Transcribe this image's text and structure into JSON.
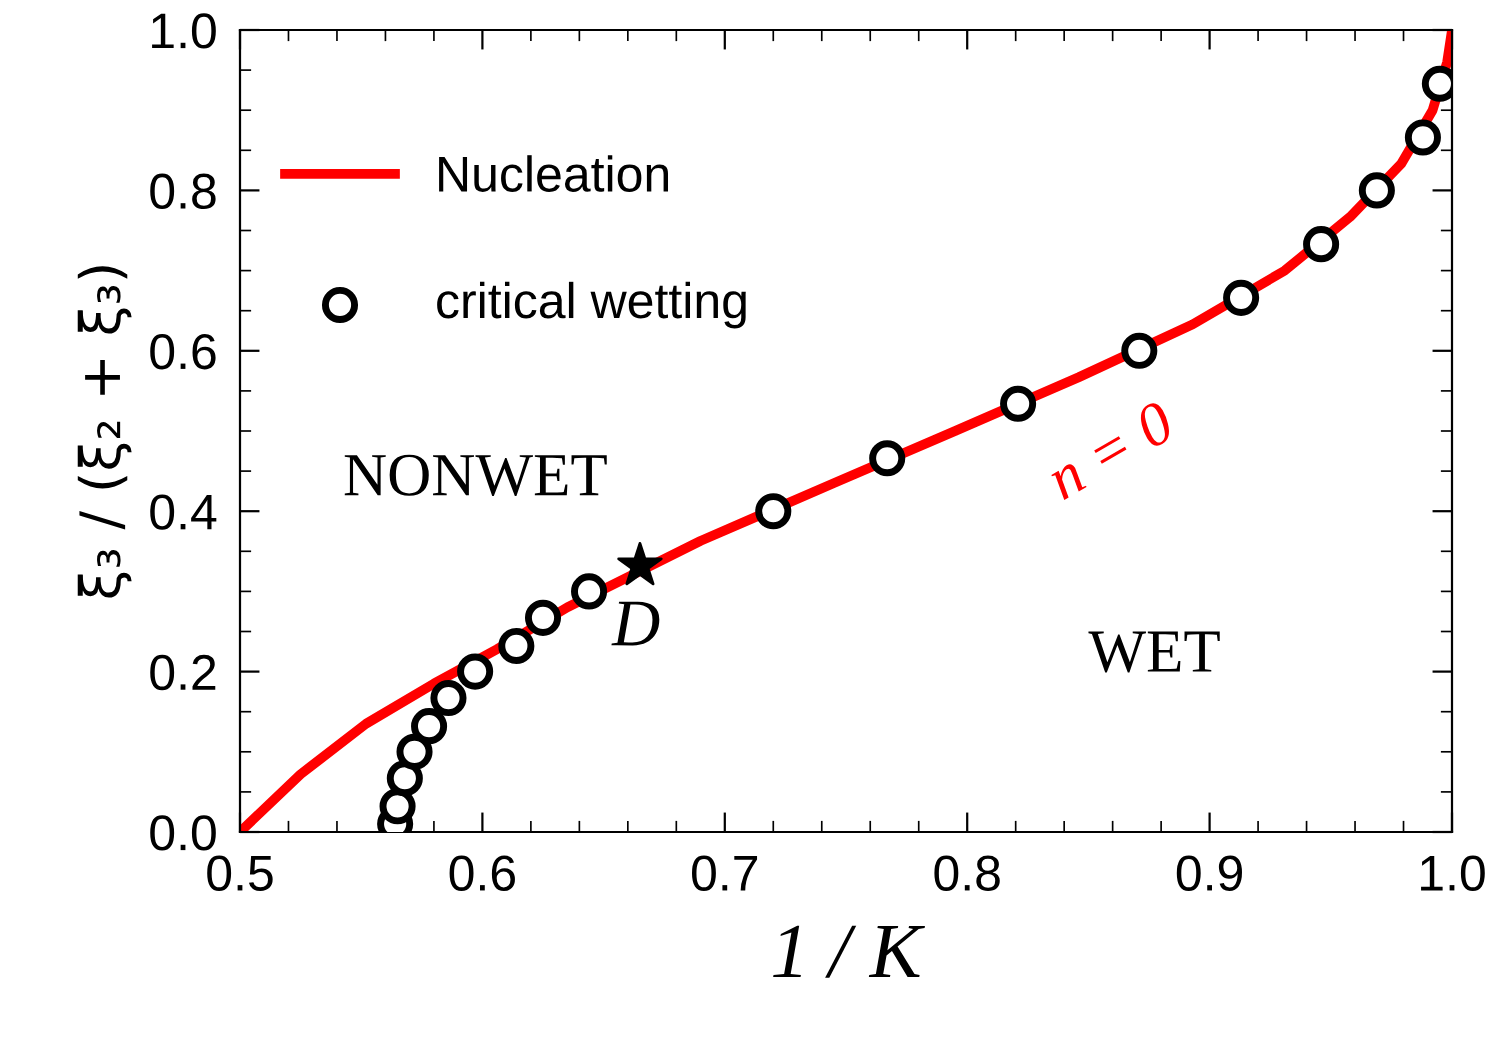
{
  "chart_data": {
    "type": "line",
    "xlabel": "1 / K",
    "ylabel": "ξ̄₃ / (ξ₂ + ξ̄₃)",
    "xlim": [
      0.5,
      1.0
    ],
    "ylim": [
      0.0,
      1.0
    ],
    "xticks": [
      {
        "value": 0.5,
        "label": "0.5"
      },
      {
        "value": 0.6,
        "label": "0.6"
      },
      {
        "value": 0.7,
        "label": "0.7"
      },
      {
        "value": 0.8,
        "label": "0.8"
      },
      {
        "value": 0.9,
        "label": "0.9"
      },
      {
        "value": 1.0,
        "label": "1.0"
      }
    ],
    "yticks": [
      {
        "value": 0.0,
        "label": "0.0"
      },
      {
        "value": 0.2,
        "label": "0.2"
      },
      {
        "value": 0.4,
        "label": "0.4"
      },
      {
        "value": 0.6,
        "label": "0.6"
      },
      {
        "value": 0.8,
        "label": "0.8"
      },
      {
        "value": 1.0,
        "label": "1.0"
      }
    ],
    "grid": false,
    "legend": "top left",
    "series": [
      {
        "name": "Nucleation",
        "color": "#ff0000",
        "marker": "none",
        "line_style": "solid",
        "x": [
          0.5,
          0.525,
          0.552,
          0.58,
          0.606,
          0.635,
          0.69,
          0.745,
          0.795,
          0.846,
          0.893,
          0.931,
          0.958,
          0.979,
          0.992,
          0.998,
          1.0
        ],
        "values": [
          0.0,
          0.072,
          0.135,
          0.185,
          0.228,
          0.28,
          0.363,
          0.435,
          0.5,
          0.567,
          0.633,
          0.7,
          0.767,
          0.833,
          0.9,
          0.96,
          1.0
        ]
      },
      {
        "name": "critical wetting",
        "type": "scatter",
        "color": "#000000",
        "marker": "circle",
        "x": [
          0.564,
          0.565,
          0.568,
          0.572,
          0.578,
          0.586,
          0.597,
          0.614,
          0.625,
          0.644,
          0.72,
          0.767,
          0.821,
          0.871,
          0.913,
          0.946,
          0.969,
          0.988,
          0.995
        ],
        "values": [
          0.01,
          0.032,
          0.067,
          0.1,
          0.132,
          0.167,
          0.2,
          0.232,
          0.267,
          0.3,
          0.4,
          0.466,
          0.534,
          0.6,
          0.666,
          0.733,
          0.8,
          0.866,
          0.933
        ]
      },
      {
        "type": "scatter",
        "color": "#000000",
        "marker": "star",
        "x": [
          0.665
        ],
        "values": [
          0.332
        ]
      }
    ],
    "annotations": [
      {
        "text": "D",
        "x": 0.665,
        "y": 0.332
      },
      "n = 0",
      "NONWET",
      "WET"
    ]
  }
}
